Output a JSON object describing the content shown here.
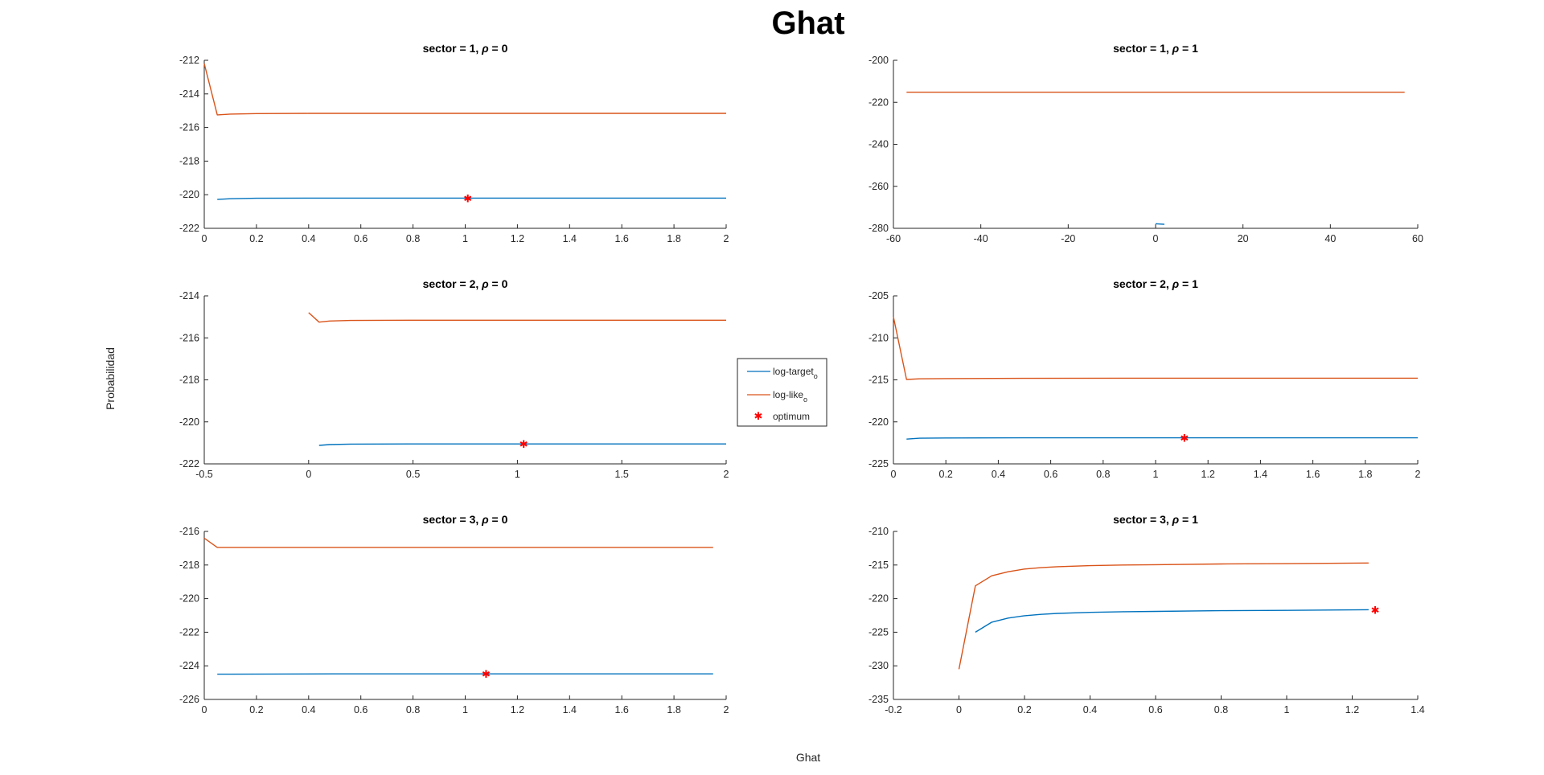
{
  "figure": {
    "title": "Ghat",
    "xlabel": "Ghat",
    "ylabel": "Probabilidad",
    "colors": {
      "log_target": "#0072bd",
      "log_like": "#d95319",
      "optimum": "#ff0000"
    },
    "legend": {
      "placement": "center-right of left column",
      "entries": [
        {
          "label": "log-target",
          "sub": "o",
          "marker": "line",
          "color": "#0072bd"
        },
        {
          "label": "log-like",
          "sub": "o",
          "marker": "line",
          "color": "#d95319"
        },
        {
          "label": "optimum",
          "sub": "",
          "marker": "star",
          "color": "#ff0000"
        }
      ]
    }
  },
  "chart_data": [
    {
      "type": "line",
      "title": "sector = 1, ρ = 0",
      "title_parts": [
        "sector = 1, ",
        "ρ",
        " = 0"
      ],
      "xlim": [
        0,
        2
      ],
      "ylim": [
        -222,
        -212
      ],
      "xticks": [
        0,
        0.2,
        0.4,
        0.6,
        0.8,
        1,
        1.2,
        1.4,
        1.6,
        1.8,
        2
      ],
      "xtick_labels": [
        "0",
        "0.2",
        "0.4",
        "0.6",
        "0.8",
        "1",
        "1.2",
        "1.4",
        "1.6",
        "1.8",
        "2"
      ],
      "yticks": [
        -222,
        -220,
        -218,
        -216,
        -214,
        -212
      ],
      "ytick_labels": [
        "-222",
        "-220",
        "-218",
        "-216",
        "-214",
        "-212"
      ],
      "series": [
        {
          "name": "log-like",
          "x": [
            0,
            0.05,
            0.1,
            0.2,
            0.4,
            0.6,
            1,
            1.5,
            2
          ],
          "y": [
            -212.2,
            -215.25,
            -215.2,
            -215.17,
            -215.16,
            -215.16,
            -215.16,
            -215.16,
            -215.16
          ]
        },
        {
          "name": "log-target",
          "x": [
            0.05,
            0.1,
            0.2,
            0.4,
            0.6,
            1,
            1.5,
            2
          ],
          "y": [
            -220.28,
            -220.24,
            -220.21,
            -220.2,
            -220.2,
            -220.2,
            -220.2,
            -220.2
          ]
        }
      ],
      "optimum": {
        "x": 1.01,
        "y": -220.2
      }
    },
    {
      "type": "line",
      "title": "sector = 1, ρ = 1",
      "title_parts": [
        "sector = 1, ",
        "ρ",
        " = 1"
      ],
      "xlim": [
        -60,
        60
      ],
      "ylim": [
        -280,
        -200
      ],
      "xticks": [
        -60,
        -40,
        -20,
        0,
        20,
        40,
        60
      ],
      "xtick_labels": [
        "-60",
        "-40",
        "-20",
        "0",
        "20",
        "40",
        "60"
      ],
      "yticks": [
        -280,
        -260,
        -240,
        -220,
        -200
      ],
      "ytick_labels": [
        "-280",
        "-260",
        "-240",
        "-220",
        "-200"
      ],
      "series": [
        {
          "name": "log-like",
          "x": [
            -57,
            57
          ],
          "y": [
            -215.2,
            -215.2
          ]
        },
        {
          "name": "log-target",
          "x": [
            0,
            2
          ],
          "y": [
            -277.8,
            -278.1
          ]
        }
      ],
      "optimum": null
    },
    {
      "type": "line",
      "title": "sector = 2, ρ = 0",
      "title_parts": [
        "sector = 2, ",
        "ρ",
        " = 0"
      ],
      "xlim": [
        -0.5,
        2
      ],
      "ylim": [
        -222,
        -214
      ],
      "xticks": [
        -0.5,
        0,
        0.5,
        1,
        1.5,
        2
      ],
      "xtick_labels": [
        "-0.5",
        "0",
        "0.5",
        "1",
        "1.5",
        "2"
      ],
      "yticks": [
        -222,
        -220,
        -218,
        -216,
        -214
      ],
      "ytick_labels": [
        "-222",
        "-220",
        "-218",
        "-216",
        "-214"
      ],
      "series": [
        {
          "name": "log-like",
          "x": [
            0,
            0.05,
            0.1,
            0.2,
            0.5,
            1,
            1.5,
            2
          ],
          "y": [
            -214.8,
            -215.25,
            -215.2,
            -215.17,
            -215.16,
            -215.16,
            -215.16,
            -215.16
          ]
        },
        {
          "name": "log-target",
          "x": [
            0.05,
            0.1,
            0.2,
            0.5,
            1,
            1.5,
            2
          ],
          "y": [
            -221.12,
            -221.08,
            -221.06,
            -221.05,
            -221.05,
            -221.05,
            -221.05
          ]
        }
      ],
      "optimum": {
        "x": 1.03,
        "y": -221.05
      }
    },
    {
      "type": "line",
      "title": "sector = 2, ρ = 1",
      "title_parts": [
        "sector = 2, ",
        "ρ",
        " = 1"
      ],
      "xlim": [
        0,
        2
      ],
      "ylim": [
        -225,
        -205
      ],
      "xticks": [
        0,
        0.2,
        0.4,
        0.6,
        0.8,
        1,
        1.2,
        1.4,
        1.6,
        1.8,
        2
      ],
      "xtick_labels": [
        "0",
        "0.2",
        "0.4",
        "0.6",
        "0.8",
        "1",
        "1.2",
        "1.4",
        "1.6",
        "1.8",
        "2"
      ],
      "yticks": [
        -225,
        -220,
        -215,
        -210,
        -205
      ],
      "ytick_labels": [
        "-225",
        "-220",
        "-215",
        "-210",
        "-205"
      ],
      "series": [
        {
          "name": "log-like",
          "x": [
            0,
            0.05,
            0.1,
            0.2,
            0.5,
            1,
            1.5,
            2
          ],
          "y": [
            -207.5,
            -214.95,
            -214.88,
            -214.85,
            -214.82,
            -214.8,
            -214.8,
            -214.8
          ]
        },
        {
          "name": "log-target",
          "x": [
            0.05,
            0.1,
            0.2,
            0.5,
            1,
            1.5,
            2
          ],
          "y": [
            -222.05,
            -221.95,
            -221.92,
            -221.9,
            -221.9,
            -221.9,
            -221.9
          ]
        }
      ],
      "optimum": {
        "x": 1.11,
        "y": -221.9
      }
    },
    {
      "type": "line",
      "title": "sector = 3, ρ = 0",
      "title_parts": [
        "sector = 3, ",
        "ρ",
        " = 0"
      ],
      "xlim": [
        0,
        2
      ],
      "ylim": [
        -226,
        -216
      ],
      "xticks": [
        0,
        0.2,
        0.4,
        0.6,
        0.8,
        1,
        1.2,
        1.4,
        1.6,
        1.8,
        2
      ],
      "xtick_labels": [
        "0",
        "0.2",
        "0.4",
        "0.6",
        "0.8",
        "1",
        "1.2",
        "1.4",
        "1.6",
        "1.8",
        "2"
      ],
      "yticks": [
        -226,
        -224,
        -222,
        -220,
        -218,
        -216
      ],
      "ytick_labels": [
        "-226",
        "-224",
        "-222",
        "-220",
        "-218",
        "-216"
      ],
      "series": [
        {
          "name": "log-like",
          "x": [
            0,
            0.05,
            0.1,
            0.2,
            0.5,
            1,
            1.5,
            1.95
          ],
          "y": [
            -216.4,
            -216.95,
            -216.95,
            -216.95,
            -216.95,
            -216.95,
            -216.95,
            -216.95
          ]
        },
        {
          "name": "log-target",
          "x": [
            0.05,
            0.1,
            0.5,
            1,
            1.5,
            1.95
          ],
          "y": [
            -224.5,
            -224.5,
            -224.48,
            -224.48,
            -224.48,
            -224.48
          ]
        }
      ],
      "optimum": {
        "x": 1.08,
        "y": -224.48
      }
    },
    {
      "type": "line",
      "title": "sector = 3, ρ = 1",
      "title_parts": [
        "sector = 3, ",
        "ρ",
        " = 1"
      ],
      "xlim": [
        -0.2,
        1.4
      ],
      "ylim": [
        -235,
        -210
      ],
      "xticks": [
        -0.2,
        0,
        0.2,
        0.4,
        0.6,
        0.8,
        1,
        1.2,
        1.4
      ],
      "xtick_labels": [
        "-0.2",
        "0",
        "0.2",
        "0.4",
        "0.6",
        "0.8",
        "1",
        "1.2",
        "1.4"
      ],
      "yticks": [
        -235,
        -230,
        -225,
        -220,
        -215,
        -210
      ],
      "ytick_labels": [
        "-235",
        "-230",
        "-225",
        "-220",
        "-215",
        "-210"
      ],
      "series": [
        {
          "name": "log-like",
          "x": [
            0,
            0.05,
            0.1,
            0.15,
            0.2,
            0.25,
            0.3,
            0.4,
            0.5,
            0.6,
            0.8,
            1.0,
            1.25
          ],
          "y": [
            -230.5,
            -218.1,
            -216.6,
            -216.0,
            -215.6,
            -215.4,
            -215.25,
            -215.1,
            -215.0,
            -214.95,
            -214.85,
            -214.8,
            -214.7
          ]
        },
        {
          "name": "log-target",
          "x": [
            0.05,
            0.1,
            0.15,
            0.2,
            0.25,
            0.3,
            0.4,
            0.5,
            0.6,
            0.8,
            1.0,
            1.25
          ],
          "y": [
            -225.0,
            -223.5,
            -222.9,
            -222.55,
            -222.35,
            -222.2,
            -222.05,
            -221.95,
            -221.9,
            -221.8,
            -221.75,
            -221.65
          ]
        }
      ],
      "optimum": {
        "x": 1.27,
        "y": -221.65
      }
    }
  ]
}
